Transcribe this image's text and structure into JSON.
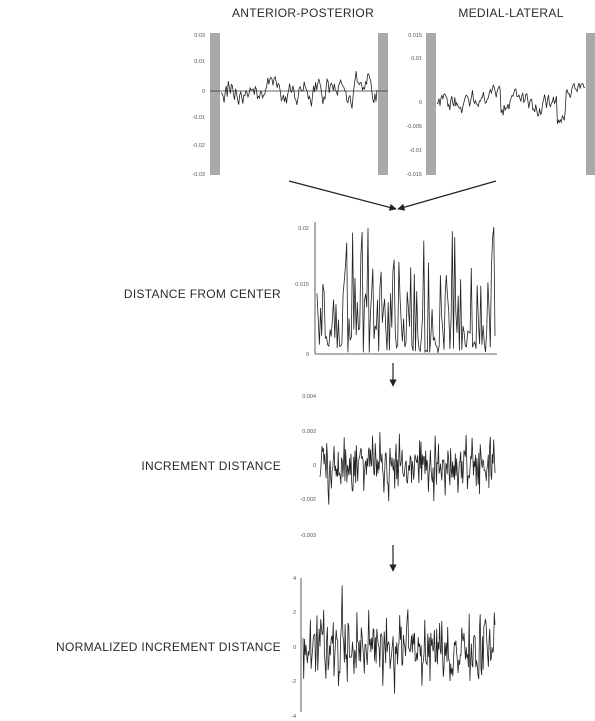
{
  "headers": {
    "ap": "ANTERIOR-POSTERIOR",
    "ml": "MEDIAL-LATERAL"
  },
  "row_labels": {
    "distance": "DISTANCE FROM CENTER",
    "increment": "INCREMENT DISTANCE",
    "normalized": "NORMALIZED INCREMENT DISTANCE"
  },
  "ticks": {
    "ap": [
      "0.03",
      "0.01",
      "0",
      "-0.01",
      "-0.02",
      "-0.03"
    ],
    "ml": [
      "0.015",
      "0.01",
      "0",
      "-0.005",
      "-0.01",
      "-0.015"
    ],
    "distance": [
      "0.02",
      "0.015",
      "0"
    ],
    "increment": [
      "0.004",
      "0.002",
      "0",
      "-0.002",
      "-0.003"
    ],
    "normalized": [
      "4",
      "2",
      "0",
      "-2",
      "-4"
    ]
  }
}
